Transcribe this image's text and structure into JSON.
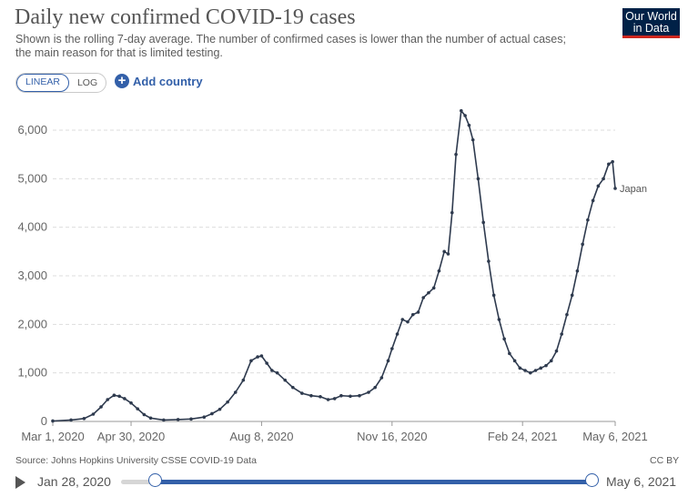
{
  "header": {
    "title": "Daily new confirmed COVID-19 cases",
    "subtitle": "Shown is the rolling 7-day average. The number of confirmed cases is lower than the number of actual cases; the main reason for that is limited testing.",
    "logo_line1": "Our World",
    "logo_line2": "in Data"
  },
  "controls": {
    "linear_label": "LINEAR",
    "log_label": "LOG",
    "add_country_label": "Add country",
    "add_icon": "plus-circle-icon"
  },
  "footer": {
    "source": "Source: Johns Hopkins University CSSE COVID-19 Data",
    "license": "CC BY"
  },
  "timeline": {
    "start_date": "Jan 28, 2020",
    "end_date": "May 6, 2021",
    "play_icon": "play-icon"
  },
  "colors": {
    "line": "#2e3a4e",
    "accent": "#3360a9",
    "logo_bg": "#002147",
    "logo_bar": "#ce261e"
  },
  "chart_data": {
    "type": "line",
    "title": "Daily new confirmed COVID-19 cases",
    "xlabel": "",
    "ylabel": "",
    "ylim": [
      0,
      6000
    ],
    "yticks": [
      0,
      1000,
      2000,
      3000,
      4000,
      5000,
      6000
    ],
    "ytick_labels": [
      "0",
      "1,000",
      "2,000",
      "3,000",
      "4,000",
      "5,000",
      "6,000"
    ],
    "xticks": [
      "2020-03-01",
      "2020-04-30",
      "2020-08-08",
      "2020-11-16",
      "2021-02-24",
      "2021-05-06"
    ],
    "xtick_labels": [
      "Mar 1, 2020",
      "Apr 30, 2020",
      "Aug 8, 2020",
      "Nov 16, 2020",
      "Feb 24, 2021",
      "May 6, 2021"
    ],
    "x_range": [
      "2020-03-01",
      "2021-05-06"
    ],
    "grid": true,
    "series": [
      {
        "name": "Japan",
        "points": [
          [
            "2020-03-01",
            10
          ],
          [
            "2020-03-15",
            30
          ],
          [
            "2020-03-25",
            60
          ],
          [
            "2020-04-01",
            150
          ],
          [
            "2020-04-07",
            300
          ],
          [
            "2020-04-12",
            450
          ],
          [
            "2020-04-17",
            540
          ],
          [
            "2020-04-21",
            520
          ],
          [
            "2020-04-25",
            470
          ],
          [
            "2020-04-30",
            380
          ],
          [
            "2020-05-05",
            260
          ],
          [
            "2020-05-10",
            140
          ],
          [
            "2020-05-15",
            70
          ],
          [
            "2020-05-25",
            30
          ],
          [
            "2020-06-05",
            40
          ],
          [
            "2020-06-15",
            50
          ],
          [
            "2020-06-25",
            90
          ],
          [
            "2020-07-01",
            160
          ],
          [
            "2020-07-07",
            250
          ],
          [
            "2020-07-13",
            400
          ],
          [
            "2020-07-19",
            600
          ],
          [
            "2020-07-25",
            850
          ],
          [
            "2020-07-31",
            1250
          ],
          [
            "2020-08-05",
            1330
          ],
          [
            "2020-08-08",
            1350
          ],
          [
            "2020-08-12",
            1200
          ],
          [
            "2020-08-16",
            1050
          ],
          [
            "2020-08-20",
            1000
          ],
          [
            "2020-08-26",
            850
          ],
          [
            "2020-09-01",
            700
          ],
          [
            "2020-09-08",
            580
          ],
          [
            "2020-09-15",
            530
          ],
          [
            "2020-09-22",
            510
          ],
          [
            "2020-09-28",
            450
          ],
          [
            "2020-10-03",
            470
          ],
          [
            "2020-10-08",
            530
          ],
          [
            "2020-10-15",
            520
          ],
          [
            "2020-10-22",
            530
          ],
          [
            "2020-10-29",
            600
          ],
          [
            "2020-11-03",
            700
          ],
          [
            "2020-11-08",
            900
          ],
          [
            "2020-11-13",
            1250
          ],
          [
            "2020-11-16",
            1500
          ],
          [
            "2020-11-20",
            1800
          ],
          [
            "2020-11-24",
            2100
          ],
          [
            "2020-11-28",
            2050
          ],
          [
            "2020-12-02",
            2200
          ],
          [
            "2020-12-06",
            2250
          ],
          [
            "2020-12-10",
            2550
          ],
          [
            "2020-12-14",
            2650
          ],
          [
            "2020-12-18",
            2750
          ],
          [
            "2020-12-22",
            3100
          ],
          [
            "2020-12-26",
            3500
          ],
          [
            "2020-12-29",
            3450
          ],
          [
            "2021-01-01",
            4300
          ],
          [
            "2021-01-04",
            5500
          ],
          [
            "2021-01-08",
            6400
          ],
          [
            "2021-01-11",
            6300
          ],
          [
            "2021-01-14",
            6100
          ],
          [
            "2021-01-17",
            5800
          ],
          [
            "2021-01-21",
            5000
          ],
          [
            "2021-01-25",
            4100
          ],
          [
            "2021-01-29",
            3300
          ],
          [
            "2021-02-02",
            2600
          ],
          [
            "2021-02-06",
            2100
          ],
          [
            "2021-02-10",
            1700
          ],
          [
            "2021-02-14",
            1400
          ],
          [
            "2021-02-18",
            1250
          ],
          [
            "2021-02-22",
            1100
          ],
          [
            "2021-02-26",
            1050
          ],
          [
            "2021-03-02",
            1000
          ],
          [
            "2021-03-06",
            1050
          ],
          [
            "2021-03-10",
            1100
          ],
          [
            "2021-03-14",
            1150
          ],
          [
            "2021-03-18",
            1250
          ],
          [
            "2021-03-22",
            1450
          ],
          [
            "2021-03-26",
            1800
          ],
          [
            "2021-03-30",
            2200
          ],
          [
            "2021-04-03",
            2600
          ],
          [
            "2021-04-07",
            3100
          ],
          [
            "2021-04-11",
            3650
          ],
          [
            "2021-04-15",
            4150
          ],
          [
            "2021-04-19",
            4550
          ],
          [
            "2021-04-23",
            4850
          ],
          [
            "2021-04-27",
            5000
          ],
          [
            "2021-05-01",
            5300
          ],
          [
            "2021-05-04",
            5350
          ],
          [
            "2021-05-06",
            4800
          ]
        ]
      }
    ]
  }
}
